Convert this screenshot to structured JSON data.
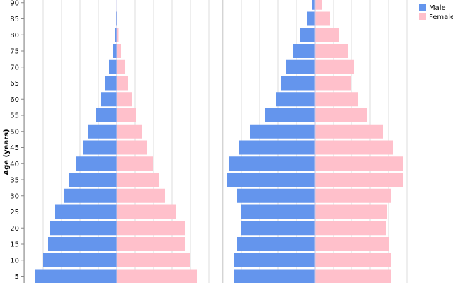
{
  "chart_data": [
    {
      "type": "bar",
      "orientation": "horizontal",
      "layout": "population-pyramid",
      "ylabel": "Age (years)",
      "y_ticks": [
        5,
        10,
        15,
        20,
        25,
        30,
        35,
        40,
        45,
        50,
        55,
        60,
        65,
        70,
        75,
        80,
        85,
        90
      ],
      "grid": true,
      "categories": [
        5,
        10,
        15,
        20,
        25,
        30,
        35,
        40,
        45,
        50,
        55,
        60,
        65,
        70,
        75,
        80,
        85,
        90
      ],
      "series": [
        {
          "name": "Male",
          "values": [
            115,
            104,
            97,
            95,
            87,
            75,
            67,
            58,
            48,
            40,
            29,
            23,
            17,
            11,
            6,
            2.5,
            1,
            0
          ]
        },
        {
          "name": "Female",
          "values": [
            113,
            103,
            97,
            96,
            83,
            68,
            60,
            51,
            42,
            36,
            27,
            22,
            16,
            11,
            6,
            2.5,
            1,
            0
          ]
        }
      ]
    },
    {
      "type": "bar",
      "orientation": "horizontal",
      "layout": "population-pyramid",
      "grid": true,
      "categories": [
        5,
        10,
        15,
        20,
        25,
        30,
        35,
        40,
        45,
        50,
        55,
        60,
        65,
        70,
        75,
        80,
        85,
        90
      ],
      "series": [
        {
          "name": "Male",
          "values": [
            114,
            114,
            110,
            105,
            104,
            110,
            124,
            122,
            107,
            92,
            70,
            55,
            48,
            41,
            31,
            21,
            11,
            4
          ]
        },
        {
          "name": "Female",
          "values": [
            108,
            108,
            104,
            100,
            102,
            108,
            125,
            124,
            110,
            96,
            74,
            61,
            51,
            55,
            46,
            34,
            21,
            10
          ]
        }
      ]
    }
  ],
  "legend": {
    "placement": "top-right",
    "items": [
      {
        "label": "Male",
        "color": "#6495ed"
      },
      {
        "label": "Female",
        "color": "#ffc0cb"
      }
    ]
  },
  "colors": {
    "male": "#6495ed",
    "female": "#ffc0cb",
    "grid": "#dddddd"
  }
}
